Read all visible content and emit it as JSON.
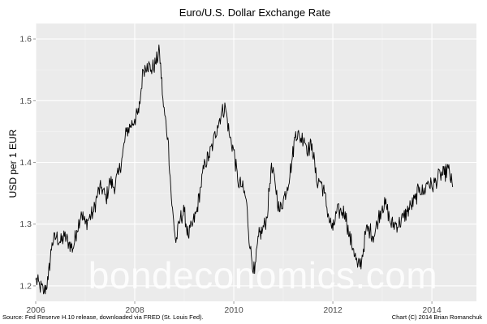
{
  "chart_data": {
    "type": "line",
    "title": "Euro/U.S. Dollar Exchange Rate",
    "xlabel": "",
    "ylabel": "USD per 1 EUR",
    "xlim": [
      2006.0,
      2014.9
    ],
    "ylim": [
      1.175,
      1.625
    ],
    "x_ticks": [
      2006,
      2008,
      2010,
      2012,
      2014
    ],
    "x_tick_labels": [
      "2006",
      "2008",
      "2010",
      "2012",
      "2014"
    ],
    "y_ticks": [
      1.2,
      1.3,
      1.4,
      1.5,
      1.6
    ],
    "y_tick_labels": [
      "1.2",
      "1.3",
      "1.4",
      "1.5",
      "1.6"
    ],
    "grid": true,
    "legend": "none",
    "colors": {
      "panel": "#ebebeb",
      "grid": "#ffffff",
      "line": "#000000"
    },
    "series": [
      {
        "x": [
          2006.0,
          2006.08,
          2006.17,
          2006.25,
          2006.33,
          2006.42,
          2006.5,
          2006.58,
          2006.67,
          2006.75,
          2006.83,
          2006.92,
          2007.0,
          2007.08,
          2007.17,
          2007.25,
          2007.33,
          2007.42,
          2007.5,
          2007.58,
          2007.67,
          2007.75,
          2007.83,
          2007.92,
          2008.0,
          2008.08,
          2008.17,
          2008.25,
          2008.33,
          2008.42,
          2008.5,
          2008.58,
          2008.67,
          2008.75,
          2008.83,
          2008.92,
          2009.0,
          2009.08,
          2009.17,
          2009.25,
          2009.33,
          2009.42,
          2009.5,
          2009.58,
          2009.67,
          2009.75,
          2009.83,
          2009.92,
          2010.0,
          2010.08,
          2010.17,
          2010.25,
          2010.33,
          2010.42,
          2010.5,
          2010.58,
          2010.67,
          2010.75,
          2010.83,
          2010.92,
          2011.0,
          2011.08,
          2011.17,
          2011.25,
          2011.33,
          2011.42,
          2011.5,
          2011.58,
          2011.67,
          2011.75,
          2011.83,
          2011.92,
          2012.0,
          2012.08,
          2012.17,
          2012.25,
          2012.33,
          2012.42,
          2012.5,
          2012.58,
          2012.67,
          2012.75,
          2012.83,
          2012.92,
          2013.0,
          2013.08,
          2013.17,
          2013.25,
          2013.33,
          2013.42,
          2013.5,
          2013.58,
          2013.67,
          2013.75,
          2013.83,
          2013.92,
          2014.0,
          2014.08,
          2014.17,
          2014.25,
          2014.33,
          2014.42
        ],
        "values": [
          1.21,
          1.2,
          1.19,
          1.21,
          1.27,
          1.28,
          1.27,
          1.28,
          1.27,
          1.26,
          1.29,
          1.32,
          1.3,
          1.31,
          1.32,
          1.35,
          1.36,
          1.34,
          1.37,
          1.36,
          1.38,
          1.41,
          1.45,
          1.46,
          1.47,
          1.48,
          1.55,
          1.56,
          1.55,
          1.56,
          1.58,
          1.49,
          1.44,
          1.33,
          1.27,
          1.31,
          1.32,
          1.28,
          1.3,
          1.32,
          1.36,
          1.4,
          1.41,
          1.43,
          1.46,
          1.48,
          1.49,
          1.44,
          1.42,
          1.37,
          1.36,
          1.34,
          1.26,
          1.22,
          1.28,
          1.29,
          1.31,
          1.39,
          1.37,
          1.32,
          1.34,
          1.36,
          1.4,
          1.45,
          1.44,
          1.44,
          1.42,
          1.43,
          1.37,
          1.37,
          1.35,
          1.31,
          1.29,
          1.32,
          1.32,
          1.32,
          1.28,
          1.26,
          1.23,
          1.24,
          1.29,
          1.29,
          1.28,
          1.31,
          1.33,
          1.33,
          1.3,
          1.3,
          1.3,
          1.31,
          1.32,
          1.33,
          1.34,
          1.36,
          1.35,
          1.37,
          1.36,
          1.37,
          1.38,
          1.38,
          1.39,
          1.36
        ]
      }
    ]
  },
  "watermark": "bondeconomics.com",
  "footer": {
    "source": "Source: Fed Reserve H.10 release, downloaded via FRED (St. Louis Fed).",
    "credit": "Chart (C) 2014 Brian Romanchuk"
  }
}
